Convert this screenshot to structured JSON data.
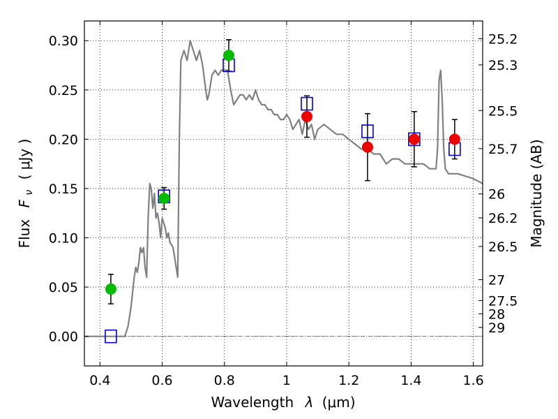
{
  "chart_data": {
    "type": "scatter",
    "xlabel": "Wavelength",
    "xlabel_symbol": "λ",
    "xlabel_unit": "(μm)",
    "ylabel": "Flux",
    "ylabel_symbol": "F",
    "ylabel_subscript": "ν",
    "ylabel_unit": "( μJy )",
    "y2label": "Magnitude (AB)",
    "xlim": [
      0.35,
      1.63
    ],
    "ylim": [
      -0.03,
      0.32
    ],
    "grid": true,
    "x_ticks": [
      0.4,
      0.6,
      0.8,
      1.0,
      1.2,
      1.4,
      1.6
    ],
    "x_tick_labels": [
      "0.4",
      "0.6",
      "0.8",
      "1",
      "1.2",
      "1.4",
      "1.6"
    ],
    "y_ticks": [
      0.0,
      0.05,
      0.1,
      0.15,
      0.2,
      0.25,
      0.3
    ],
    "y_tick_labels": [
      "0.00",
      "0.05",
      "0.10",
      "0.15",
      "0.20",
      "0.25",
      "0.30"
    ],
    "y2_ticks": [
      {
        "label": "25.2",
        "flux": 0.302
      },
      {
        "label": "25.3",
        "flux": 0.2754
      },
      {
        "label": "25.5",
        "flux": 0.2291
      },
      {
        "label": "25.7",
        "flux": 0.1905
      },
      {
        "label": "26",
        "flux": 0.1445
      },
      {
        "label": "26.2",
        "flux": 0.1202
      },
      {
        "label": "26.5",
        "flux": 0.0912
      },
      {
        "label": "27",
        "flux": 0.0575
      },
      {
        "label": "27.5",
        "flux": 0.0363
      },
      {
        "label": "28",
        "flux": 0.0229
      },
      {
        "label": "29",
        "flux": 0.0091
      }
    ],
    "colors": {
      "model": "#808080",
      "green": "#00bb00",
      "red": "#ee0000",
      "box": "#0000cc",
      "error": "#000000"
    },
    "model_spectrum": {
      "x": [
        0.35,
        0.46,
        0.48,
        0.49,
        0.5,
        0.51,
        0.515,
        0.52,
        0.525,
        0.53,
        0.535,
        0.54,
        0.545,
        0.55,
        0.555,
        0.56,
        0.565,
        0.57,
        0.575,
        0.58,
        0.585,
        0.59,
        0.595,
        0.6,
        0.605,
        0.61,
        0.615,
        0.62,
        0.625,
        0.63,
        0.635,
        0.64,
        0.645,
        0.65,
        0.655,
        0.66,
        0.67,
        0.68,
        0.69,
        0.7,
        0.71,
        0.72,
        0.73,
        0.74,
        0.745,
        0.75,
        0.76,
        0.77,
        0.78,
        0.79,
        0.8,
        0.81,
        0.82,
        0.83,
        0.84,
        0.85,
        0.86,
        0.87,
        0.88,
        0.89,
        0.9,
        0.91,
        0.92,
        0.93,
        0.94,
        0.95,
        0.96,
        0.97,
        0.98,
        0.99,
        1.0,
        1.01,
        1.02,
        1.03,
        1.04,
        1.05,
        1.06,
        1.07,
        1.08,
        1.09,
        1.1,
        1.12,
        1.14,
        1.16,
        1.18,
        1.2,
        1.22,
        1.24,
        1.26,
        1.28,
        1.3,
        1.31,
        1.32,
        1.34,
        1.36,
        1.38,
        1.4,
        1.42,
        1.44,
        1.46,
        1.48,
        1.485,
        1.49,
        1.495,
        1.5,
        1.505,
        1.51,
        1.52,
        1.55,
        1.6,
        1.63
      ],
      "y": [
        0.0,
        0.0,
        0.0,
        0.01,
        0.03,
        0.06,
        0.07,
        0.065,
        0.075,
        0.09,
        0.085,
        0.09,
        0.07,
        0.06,
        0.12,
        0.155,
        0.15,
        0.13,
        0.145,
        0.12,
        0.125,
        0.115,
        0.1,
        0.12,
        0.115,
        0.11,
        0.1,
        0.105,
        0.095,
        0.093,
        0.09,
        0.08,
        0.07,
        0.06,
        0.2,
        0.28,
        0.29,
        0.28,
        0.3,
        0.29,
        0.28,
        0.29,
        0.275,
        0.25,
        0.24,
        0.245,
        0.265,
        0.27,
        0.265,
        0.27,
        0.27,
        0.27,
        0.25,
        0.235,
        0.24,
        0.245,
        0.245,
        0.24,
        0.245,
        0.24,
        0.25,
        0.24,
        0.235,
        0.235,
        0.23,
        0.23,
        0.225,
        0.225,
        0.22,
        0.22,
        0.225,
        0.22,
        0.21,
        0.215,
        0.22,
        0.205,
        0.22,
        0.21,
        0.215,
        0.2,
        0.21,
        0.215,
        0.21,
        0.205,
        0.205,
        0.2,
        0.195,
        0.19,
        0.19,
        0.185,
        0.185,
        0.18,
        0.175,
        0.18,
        0.18,
        0.175,
        0.175,
        0.175,
        0.175,
        0.17,
        0.17,
        0.19,
        0.26,
        0.27,
        0.24,
        0.19,
        0.17,
        0.165,
        0.165,
        0.16,
        0.155
      ]
    },
    "green_points": [
      {
        "x": 0.435,
        "y": 0.048,
        "err": 0.015
      },
      {
        "x": 0.606,
        "y": 0.14,
        "err": 0.011
      },
      {
        "x": 0.814,
        "y": 0.285,
        "err": 0.016
      }
    ],
    "red_points": [
      {
        "x": 1.065,
        "y": 0.223,
        "err": 0.021
      },
      {
        "x": 1.26,
        "y": 0.192,
        "err": 0.034
      },
      {
        "x": 1.41,
        "y": 0.2,
        "err": 0.028
      },
      {
        "x": 1.54,
        "y": 0.2,
        "err": 0.02
      }
    ],
    "model_boxes": [
      {
        "x": 0.435,
        "y": 0.0
      },
      {
        "x": 0.606,
        "y": 0.142
      },
      {
        "x": 0.814,
        "y": 0.275
      },
      {
        "x": 1.065,
        "y": 0.236
      },
      {
        "x": 1.26,
        "y": 0.208
      },
      {
        "x": 1.41,
        "y": 0.2
      },
      {
        "x": 1.54,
        "y": 0.19
      }
    ]
  }
}
